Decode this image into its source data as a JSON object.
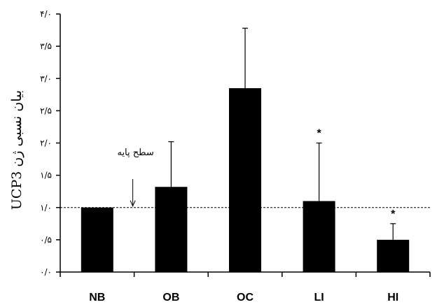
{
  "chart_data": {
    "type": "bar",
    "categories": [
      "NB",
      "OB",
      "OC",
      "LI",
      "HI"
    ],
    "values": [
      1.0,
      1.32,
      2.85,
      1.1,
      0.5
    ],
    "errors": [
      0,
      0.7,
      0.93,
      0.9,
      0.25
    ],
    "significance": [
      "",
      "",
      "",
      "*",
      "*"
    ],
    "ylabel": "بیان نسبی ژن UCP3",
    "ylim": [
      0,
      4
    ],
    "yticks": [
      0,
      0.5,
      1,
      1.5,
      2,
      2.5,
      3,
      3.5,
      4
    ],
    "ytick_labels": [
      "۰/۰",
      "۰/۵",
      "۱/۰",
      "۱/۵",
      "۲/۰",
      "۲/۵",
      "۳/۰",
      "۳/۵",
      "۴/۰"
    ],
    "baseline": 1.0,
    "baseline_label": "سطح پایه",
    "bar_color": "#000000",
    "grid": false
  }
}
